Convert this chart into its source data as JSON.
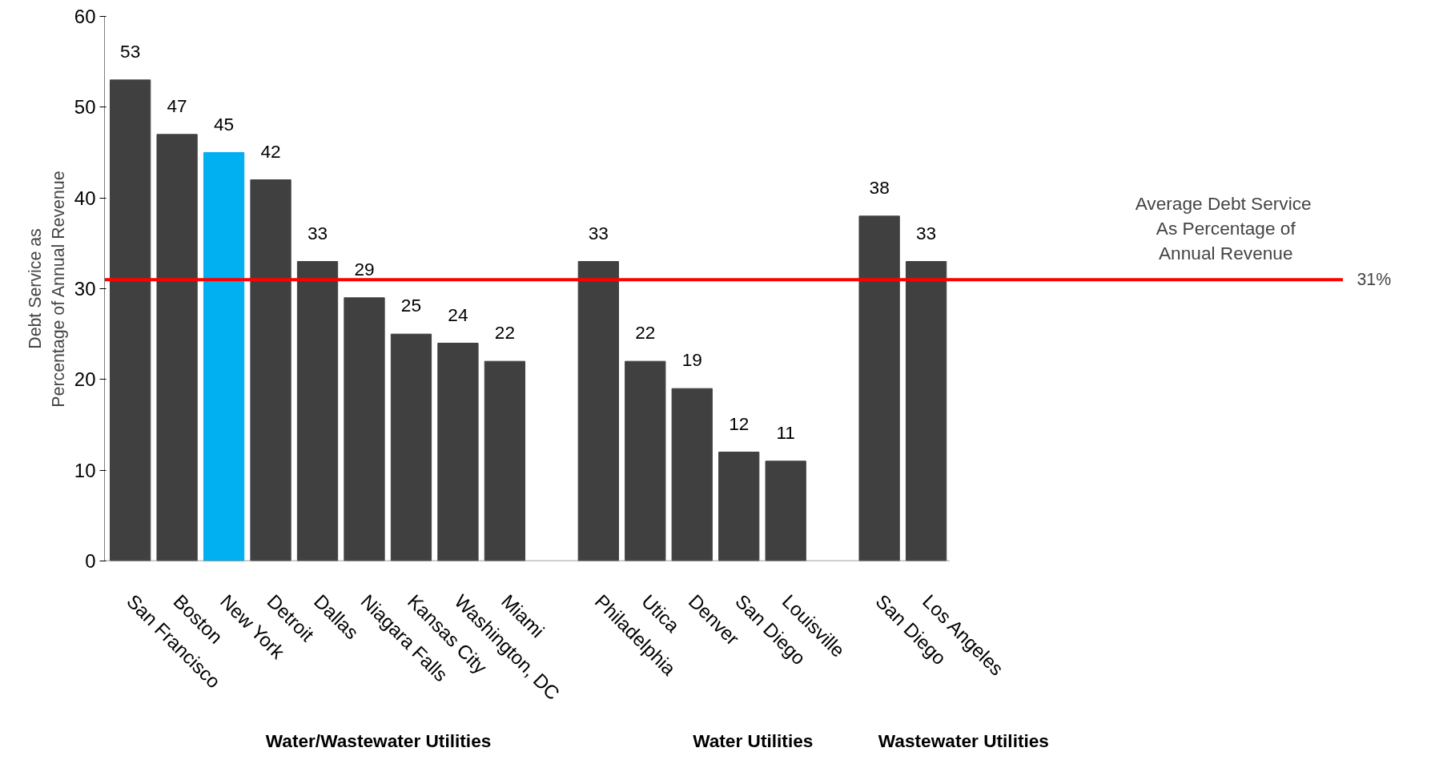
{
  "chart_data": {
    "type": "bar",
    "ylabel": "Debt Service as\nPercentage of Annual Revenue",
    "categories": [
      "San Francisco",
      "Boston",
      "New York",
      "Detroit",
      "Dallas",
      "Niagara Falls",
      "Kansas City",
      "Washington, DC",
      "Miami",
      null,
      "Philadelphia",
      "Utica",
      "Denver",
      "San Diego",
      "Louisville",
      null,
      "San Diego",
      "Los Angeles"
    ],
    "values": [
      53,
      47,
      45,
      42,
      33,
      29,
      25,
      24,
      22,
      null,
      33,
      22,
      19,
      12,
      11,
      null,
      38,
      33
    ],
    "colors": [
      "#404040",
      "#404040",
      "#00b0f0",
      "#404040",
      "#404040",
      "#404040",
      "#404040",
      "#404040",
      "#404040",
      "#404040",
      "#404040",
      "#404040",
      "#404040",
      "#404040",
      "#404040",
      "#404040",
      "#404040",
      "#404040"
    ],
    "data_labels": true,
    "ylim": [
      0,
      60
    ],
    "yticks": [
      0,
      10,
      20,
      30,
      40,
      50,
      60
    ],
    "grid": false,
    "ref_lines": [
      {
        "axis": "y",
        "value": 31,
        "label": "31%",
        "color": "#ff0000"
      }
    ],
    "annotations": [
      "Water/Wastewater Utilities",
      "Water Utilities",
      "Wastewater Utilities",
      "Average Debt  Service\nAs Percentage of\nAnnual Revenue"
    ]
  }
}
